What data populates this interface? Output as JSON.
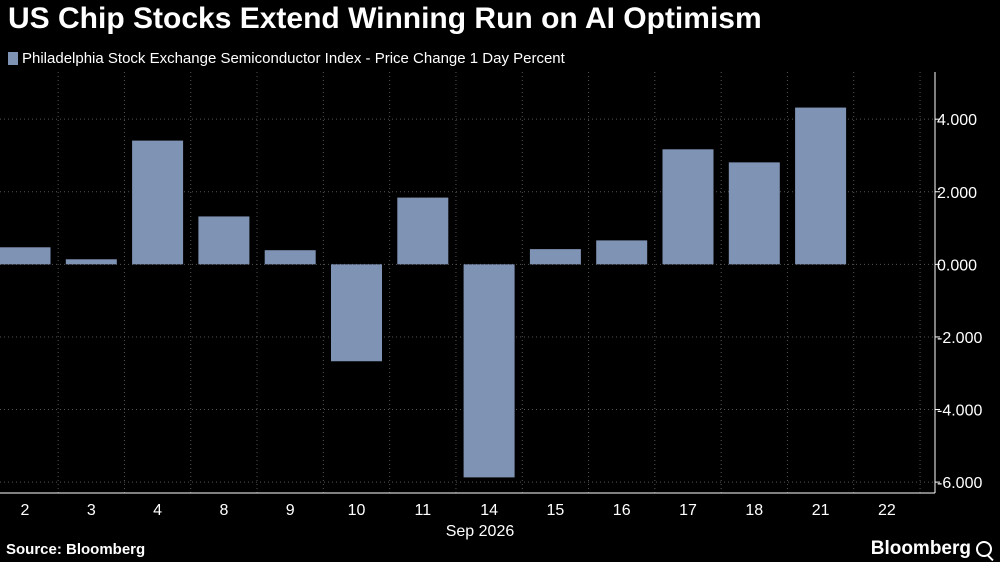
{
  "title": "US Chip Stocks Extend Winning Run on AI Optimism",
  "source": "Source: Bloomberg",
  "brand": "Bloomberg",
  "colors": {
    "bar": "#7f93b4",
    "background": "#000000",
    "grid": "#555555"
  },
  "chart_data": {
    "type": "bar",
    "categories": [
      "2",
      "3",
      "4",
      "8",
      "9",
      "10",
      "11",
      "14",
      "15",
      "16",
      "17",
      "18",
      "21",
      "22"
    ],
    "series": [
      {
        "name": "Philadelphia Stock Exchange Semiconductor Index - Price Change 1 Day Percent",
        "values": [
          0.47,
          0.14,
          3.41,
          1.32,
          0.39,
          -2.67,
          1.84,
          -5.87,
          0.42,
          0.66,
          3.17,
          2.81,
          4.32,
          null
        ]
      }
    ],
    "x_period_label": "Sep 2026",
    "ylim": [
      -6.3,
      5.3
    ],
    "yticks": [
      4,
      2,
      0,
      -2,
      -4,
      -6
    ],
    "ytick_labels": [
      "4.000",
      "2.000",
      "0.000",
      "-2.000",
      "-4.000",
      "-6.000"
    ],
    "grid": true,
    "legend_position": "top-left"
  }
}
